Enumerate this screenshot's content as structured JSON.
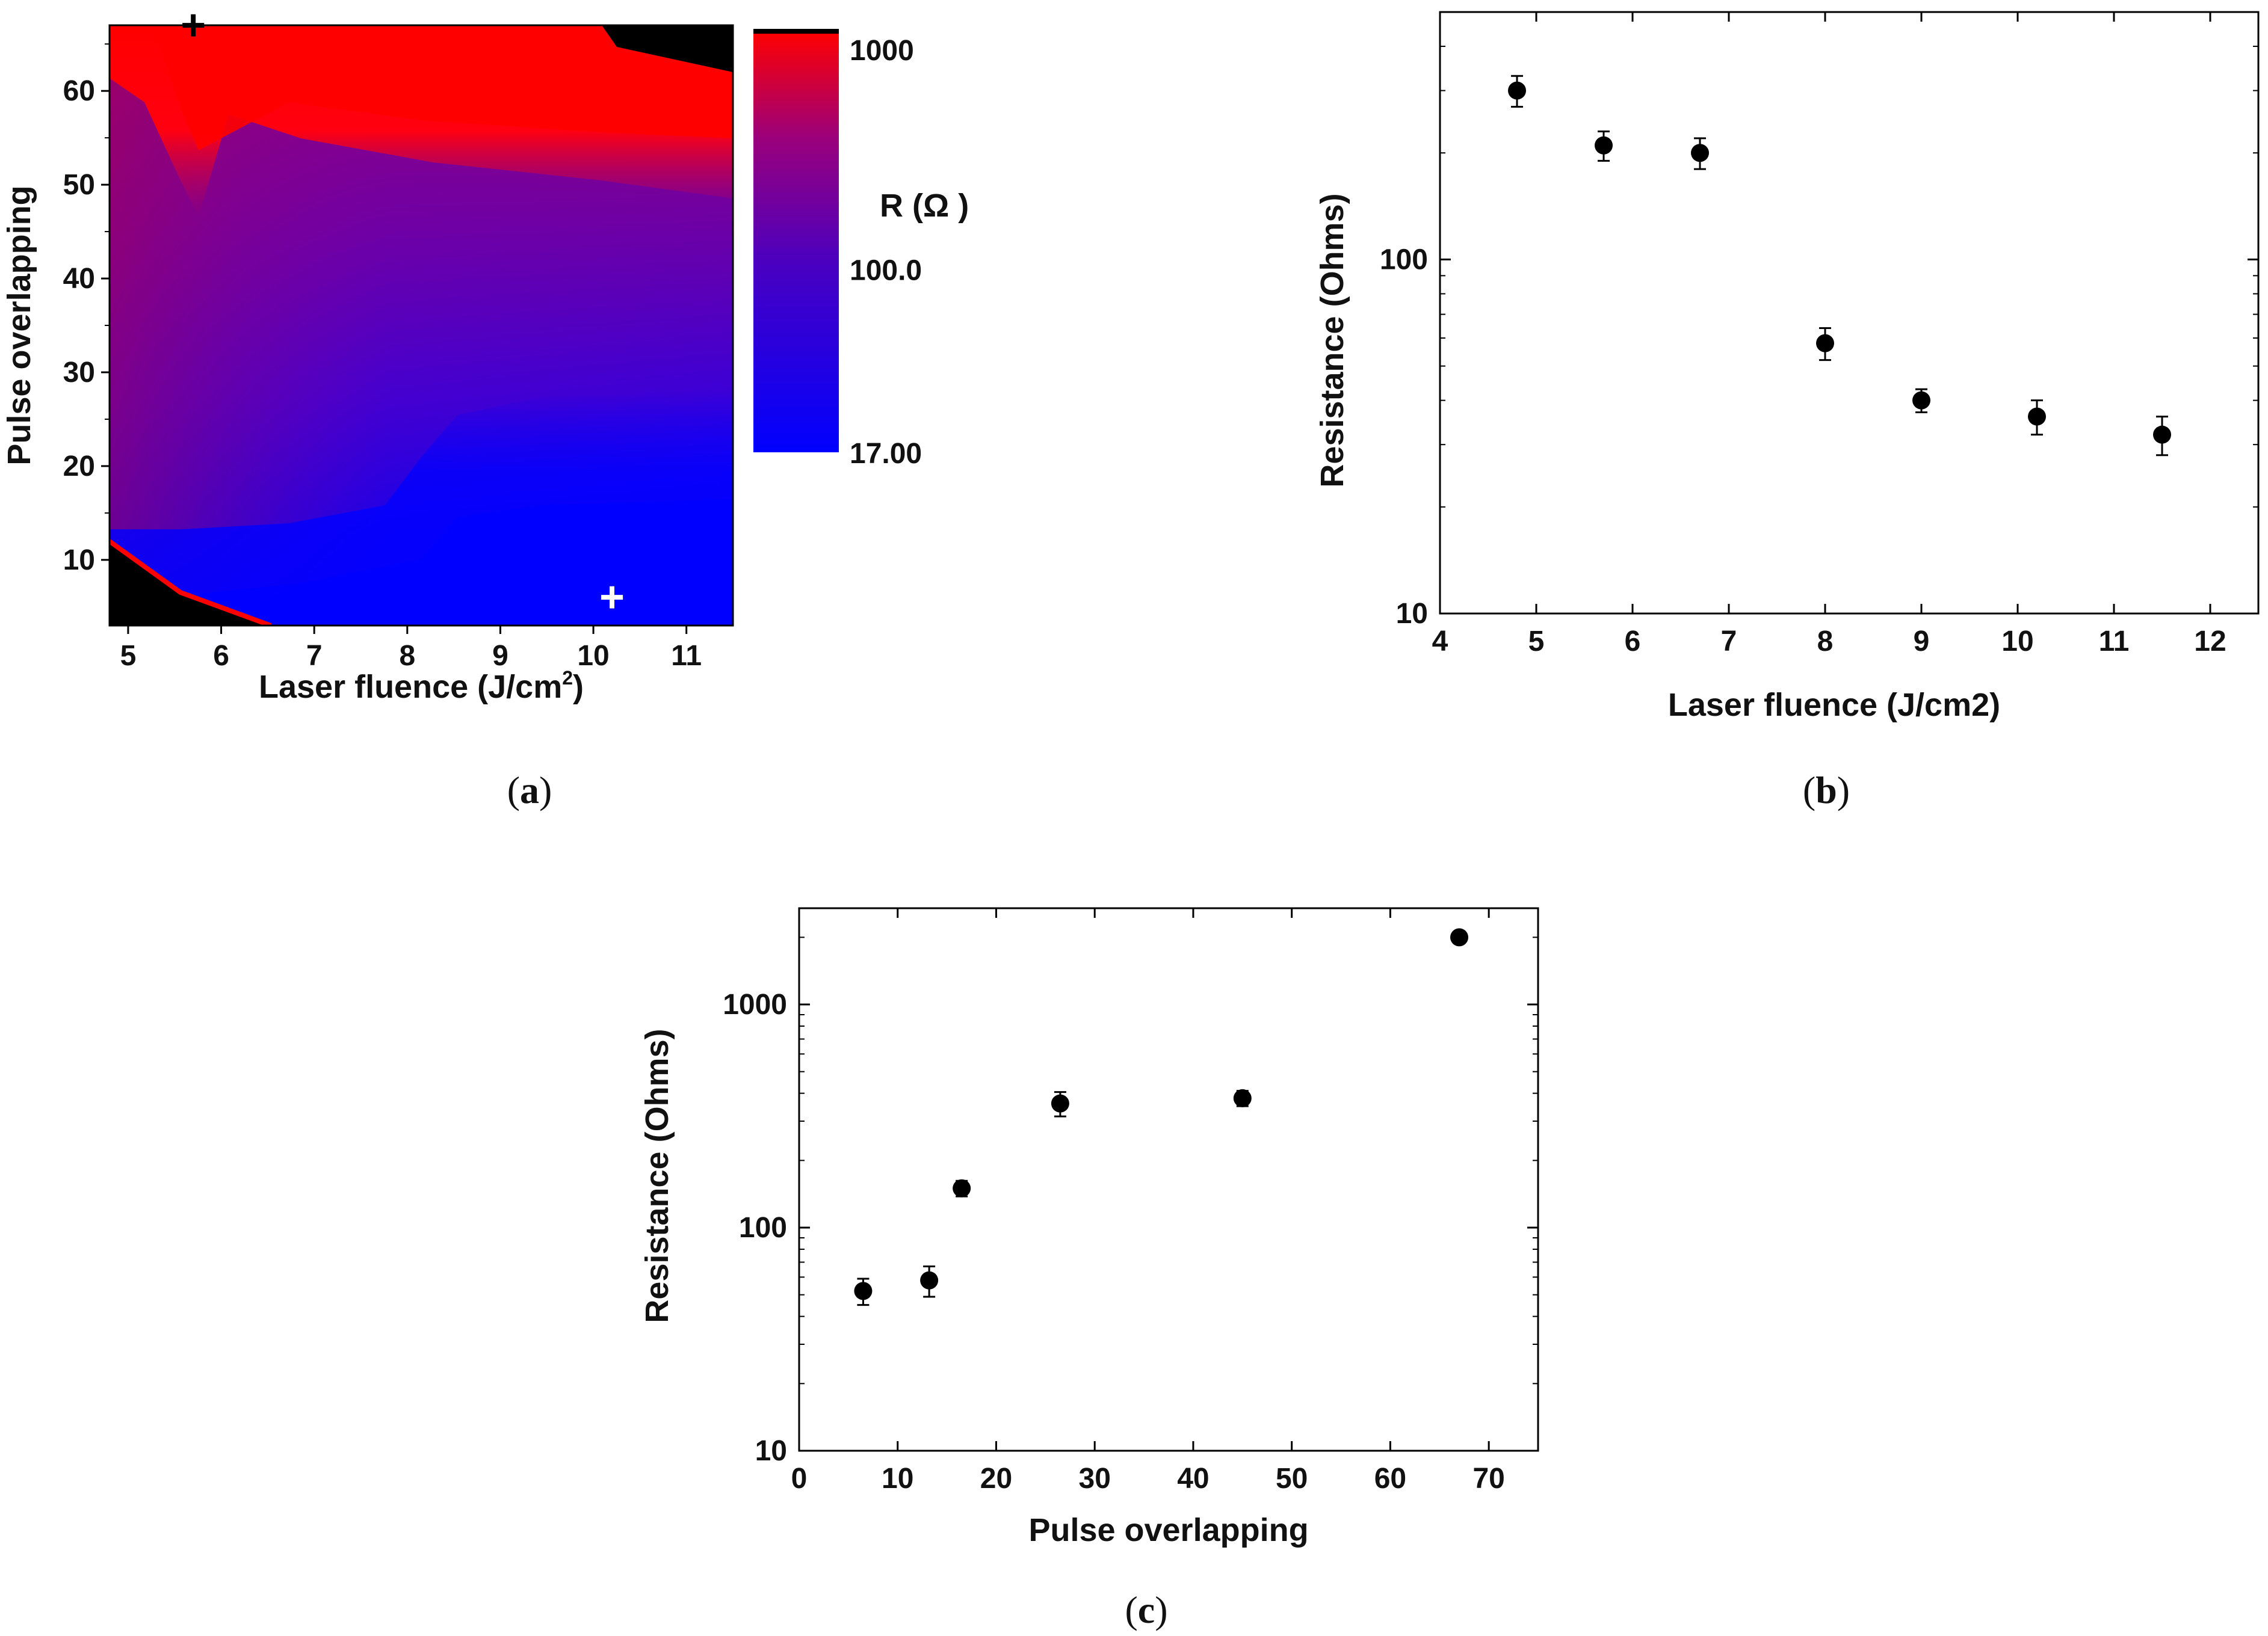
{
  "colors": {
    "high": "#ff0000",
    "mid": "#5a00b4",
    "low": "#0000ff",
    "out_of_range": "#000000",
    "marker": "#000000"
  },
  "chart_data": [
    {
      "id": "a",
      "type": "heatmap",
      "panel_label": "a",
      "xlabel": "Laser fluence (J/cm²)",
      "xlabel_main": "Laser fluence (J/cm",
      "xlabel_sup": "2",
      "xlabel_close": ")",
      "ylabel": "Pulse overlapping",
      "xlim": [
        4.8,
        11.5
      ],
      "ylim": [
        3,
        67
      ],
      "xticks": [
        "5",
        "6",
        "7",
        "8",
        "9",
        "10",
        "11"
      ],
      "yticks": [
        "10",
        "20",
        "30",
        "40",
        "50",
        "60"
      ],
      "colorbar": {
        "title": "R (Ω )",
        "scale": "log",
        "min": 17,
        "max": 1000,
        "tick_labels": [
          "1000",
          "100.0",
          "17.00"
        ],
        "tick_values": [
          1000,
          100,
          17
        ]
      },
      "markers": [
        {
          "x": 5.7,
          "y": 67,
          "symbol": "+",
          "color": "black"
        },
        {
          "x": 10.2,
          "y": 6,
          "symbol": "+",
          "color": "white"
        }
      ]
    },
    {
      "id": "b",
      "type": "scatter",
      "panel_label": "b",
      "xlabel": "Laser fluence (J/cm2)",
      "ylabel": "Resistance (Ohms)",
      "xlim": [
        4,
        12.5
      ],
      "ylim": [
        10,
        500
      ],
      "yscale": "log",
      "xticks": [
        "4",
        "5",
        "6",
        "7",
        "8",
        "9",
        "10",
        "11",
        "12"
      ],
      "yticks": [
        "10",
        "100"
      ],
      "x": [
        4.8,
        5.7,
        6.7,
        8.0,
        9.0,
        10.2,
        11.5
      ],
      "y": [
        300,
        210,
        200,
        58,
        40,
        36,
        32
      ],
      "yerr": [
        30,
        20,
        20,
        6,
        3,
        4,
        4
      ]
    },
    {
      "id": "c",
      "type": "scatter",
      "panel_label": "c",
      "xlabel": "Pulse overlapping",
      "ylabel": "Resistance (Ohms)",
      "xlim": [
        0,
        75
      ],
      "ylim": [
        10,
        2700
      ],
      "yscale": "log",
      "xticks": [
        "0",
        "10",
        "20",
        "30",
        "40",
        "50",
        "60",
        "70"
      ],
      "yticks": [
        "10",
        "100",
        "1000"
      ],
      "x": [
        6.5,
        13.2,
        16.5,
        26.5,
        45,
        67
      ],
      "y": [
        52,
        58,
        150,
        360,
        380,
        2000
      ],
      "yerr": [
        7,
        9,
        12,
        45,
        30,
        120
      ]
    }
  ]
}
